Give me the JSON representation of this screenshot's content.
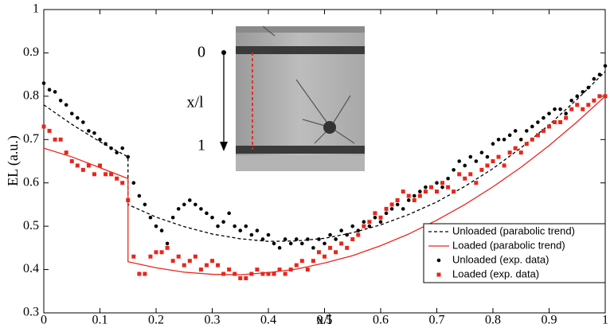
{
  "chart_data": {
    "type": "line",
    "xlabel": "x/l",
    "ylabel": "EL (a.u.)",
    "xlim": [
      0,
      1
    ],
    "ylim": [
      0.3,
      1
    ],
    "xticks": [
      0,
      0.1,
      0.2,
      0.3,
      0.4,
      0.5,
      0.6,
      0.7,
      0.8,
      0.9,
      1
    ],
    "yticks": [
      0.3,
      0.4,
      0.5,
      0.6,
      0.7,
      0.8,
      0.9,
      1
    ],
    "grid": false,
    "legend": "lower right",
    "annotations": [
      "0",
      "x/l",
      "1"
    ],
    "series": [
      {
        "name": "Unloaded (parabolic trend)",
        "color": "#000000",
        "linestyle": "dashed",
        "marker": "none",
        "x": [
          0,
          0.05,
          0.1,
          0.15,
          0.15,
          0.2,
          0.25,
          0.3,
          0.35,
          0.4,
          0.45,
          0.5,
          0.55,
          0.6,
          0.65,
          0.7,
          0.75,
          0.8,
          0.85,
          0.9,
          0.95,
          1
        ],
        "values": [
          0.78,
          0.735,
          0.695,
          0.66,
          0.55,
          0.521,
          0.499,
          0.482,
          0.471,
          0.465,
          0.466,
          0.472,
          0.485,
          0.503,
          0.527,
          0.556,
          0.592,
          0.633,
          0.681,
          0.734,
          0.793,
          0.857
        ]
      },
      {
        "name": "Loaded (parabolic trend)",
        "color": "#e8261c",
        "linestyle": "solid",
        "marker": "none",
        "x": [
          0,
          0.05,
          0.1,
          0.15,
          0.15,
          0.2,
          0.25,
          0.3,
          0.35,
          0.4,
          0.45,
          0.5,
          0.55,
          0.6,
          0.65,
          0.7,
          0.75,
          0.8,
          0.85,
          0.9,
          0.95,
          1
        ],
        "values": [
          0.68,
          0.66,
          0.635,
          0.61,
          0.418,
          0.404,
          0.394,
          0.389,
          0.388,
          0.393,
          0.401,
          0.415,
          0.432,
          0.455,
          0.482,
          0.514,
          0.55,
          0.591,
          0.636,
          0.686,
          0.741,
          0.8
        ]
      },
      {
        "name": "Unloaded (exp. data)",
        "color": "#000000",
        "linestyle": "none",
        "marker": "circle",
        "x": [
          0,
          0.01,
          0.02,
          0.03,
          0.04,
          0.05,
          0.06,
          0.07,
          0.08,
          0.09,
          0.1,
          0.11,
          0.12,
          0.13,
          0.14,
          0.15,
          0.16,
          0.17,
          0.18,
          0.19,
          0.2,
          0.21,
          0.22,
          0.23,
          0.24,
          0.25,
          0.26,
          0.27,
          0.28,
          0.29,
          0.3,
          0.31,
          0.32,
          0.33,
          0.34,
          0.35,
          0.36,
          0.37,
          0.38,
          0.39,
          0.4,
          0.41,
          0.42,
          0.43,
          0.44,
          0.45,
          0.46,
          0.47,
          0.48,
          0.49,
          0.5,
          0.51,
          0.52,
          0.53,
          0.54,
          0.55,
          0.56,
          0.57,
          0.58,
          0.59,
          0.6,
          0.61,
          0.62,
          0.63,
          0.64,
          0.65,
          0.66,
          0.67,
          0.68,
          0.69,
          0.7,
          0.71,
          0.72,
          0.73,
          0.74,
          0.75,
          0.76,
          0.77,
          0.78,
          0.79,
          0.8,
          0.81,
          0.82,
          0.83,
          0.84,
          0.85,
          0.86,
          0.87,
          0.88,
          0.89,
          0.9,
          0.91,
          0.92,
          0.93,
          0.94,
          0.95,
          0.96,
          0.97,
          0.98,
          0.99,
          1
        ],
        "values": [
          0.83,
          0.815,
          0.81,
          0.79,
          0.78,
          0.76,
          0.75,
          0.74,
          0.72,
          0.715,
          0.7,
          0.69,
          0.68,
          0.67,
          0.68,
          0.66,
          0.6,
          0.57,
          0.55,
          0.52,
          0.5,
          0.49,
          0.46,
          0.52,
          0.54,
          0.55,
          0.56,
          0.55,
          0.54,
          0.53,
          0.52,
          0.5,
          0.51,
          0.53,
          0.5,
          0.49,
          0.5,
          0.48,
          0.49,
          0.47,
          0.48,
          0.46,
          0.45,
          0.47,
          0.46,
          0.47,
          0.46,
          0.47,
          0.45,
          0.47,
          0.46,
          0.48,
          0.47,
          0.49,
          0.48,
          0.5,
          0.49,
          0.51,
          0.5,
          0.52,
          0.51,
          0.53,
          0.54,
          0.55,
          0.54,
          0.56,
          0.57,
          0.58,
          0.59,
          0.59,
          0.6,
          0.59,
          0.61,
          0.63,
          0.65,
          0.64,
          0.66,
          0.65,
          0.67,
          0.66,
          0.69,
          0.7,
          0.7,
          0.71,
          0.72,
          0.7,
          0.72,
          0.73,
          0.74,
          0.75,
          0.76,
          0.77,
          0.77,
          0.76,
          0.79,
          0.8,
          0.81,
          0.82,
          0.84,
          0.85,
          0.87
        ]
      },
      {
        "name": "Loaded (exp. data)",
        "color": "#e8261c",
        "linestyle": "none",
        "marker": "square",
        "x": [
          0,
          0.01,
          0.02,
          0.03,
          0.04,
          0.05,
          0.06,
          0.07,
          0.08,
          0.09,
          0.1,
          0.11,
          0.12,
          0.13,
          0.14,
          0.15,
          0.16,
          0.17,
          0.18,
          0.19,
          0.2,
          0.21,
          0.22,
          0.23,
          0.24,
          0.25,
          0.26,
          0.27,
          0.28,
          0.29,
          0.3,
          0.31,
          0.32,
          0.33,
          0.34,
          0.35,
          0.36,
          0.37,
          0.38,
          0.39,
          0.4,
          0.41,
          0.42,
          0.43,
          0.44,
          0.45,
          0.46,
          0.47,
          0.48,
          0.49,
          0.5,
          0.51,
          0.52,
          0.53,
          0.54,
          0.55,
          0.56,
          0.57,
          0.58,
          0.59,
          0.6,
          0.61,
          0.62,
          0.63,
          0.64,
          0.65,
          0.66,
          0.67,
          0.68,
          0.69,
          0.7,
          0.71,
          0.72,
          0.73,
          0.74,
          0.75,
          0.76,
          0.77,
          0.78,
          0.79,
          0.8,
          0.81,
          0.82,
          0.83,
          0.84,
          0.85,
          0.86,
          0.87,
          0.88,
          0.89,
          0.9,
          0.91,
          0.92,
          0.93,
          0.94,
          0.95,
          0.96,
          0.97,
          0.98,
          0.99,
          1
        ],
        "values": [
          0.73,
          0.72,
          0.7,
          0.7,
          0.67,
          0.65,
          0.64,
          0.63,
          0.64,
          0.62,
          0.64,
          0.62,
          0.62,
          0.61,
          0.6,
          0.56,
          0.43,
          0.39,
          0.39,
          0.43,
          0.44,
          0.44,
          0.45,
          0.42,
          0.43,
          0.41,
          0.42,
          0.43,
          0.4,
          0.41,
          0.42,
          0.41,
          0.39,
          0.4,
          0.39,
          0.38,
          0.38,
          0.39,
          0.4,
          0.39,
          0.39,
          0.39,
          0.4,
          0.39,
          0.4,
          0.41,
          0.42,
          0.4,
          0.42,
          0.44,
          0.43,
          0.45,
          0.44,
          0.46,
          0.45,
          0.47,
          0.48,
          0.5,
          0.51,
          0.53,
          0.52,
          0.54,
          0.55,
          0.56,
          0.58,
          0.57,
          0.56,
          0.57,
          0.58,
          0.59,
          0.58,
          0.6,
          0.59,
          0.58,
          0.62,
          0.61,
          0.62,
          0.6,
          0.63,
          0.64,
          0.65,
          0.66,
          0.64,
          0.67,
          0.68,
          0.67,
          0.69,
          0.7,
          0.71,
          0.72,
          0.73,
          0.74,
          0.74,
          0.75,
          0.77,
          0.78,
          0.77,
          0.78,
          0.79,
          0.8,
          0.8
        ]
      }
    ]
  }
}
